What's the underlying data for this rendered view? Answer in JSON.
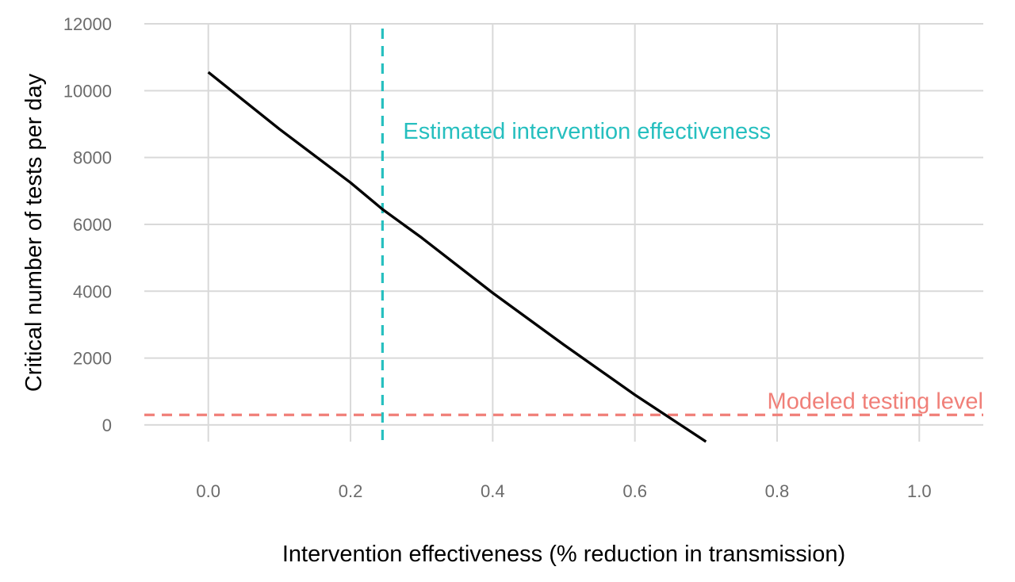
{
  "chart_data": {
    "type": "line",
    "title": "",
    "xlabel": "Intervention effectiveness (% reduction in transmission)",
    "ylabel": "Critical number of tests per day",
    "xlim": [
      -0.09,
      1.09
    ],
    "ylim": [
      -500,
      12000
    ],
    "x_ticks": [
      {
        "value": 0.0,
        "label": "0.0"
      },
      {
        "value": 0.2,
        "label": "0.2"
      },
      {
        "value": 0.4,
        "label": "0.4"
      },
      {
        "value": 0.6,
        "label": "0.6"
      },
      {
        "value": 0.8,
        "label": "0.8"
      },
      {
        "value": 1.0,
        "label": "1.0"
      }
    ],
    "y_ticks": [
      {
        "value": 0,
        "label": "0"
      },
      {
        "value": 2000,
        "label": "2000"
      },
      {
        "value": 4000,
        "label": "4000"
      },
      {
        "value": 6000,
        "label": "6000"
      },
      {
        "value": 8000,
        "label": "8000"
      },
      {
        "value": 10000,
        "label": "10000"
      },
      {
        "value": 12000,
        "label": "12000"
      }
    ],
    "grid": true,
    "series": [
      {
        "color": "#000000",
        "x": [
          0.0,
          0.1,
          0.2,
          0.245,
          0.3,
          0.4,
          0.5,
          0.6,
          0.65,
          0.7
        ],
        "y": [
          10550,
          8850,
          7250,
          6450,
          5600,
          3950,
          2400,
          900,
          200,
          -500
        ]
      }
    ],
    "reference_lines": [
      {
        "orientation": "vertical",
        "value": 0.245,
        "color": "#26bfbf",
        "style": "dashed",
        "label": "Estimated intervention effectiveness"
      },
      {
        "orientation": "horizontal",
        "value": 300,
        "color": "#f07f78",
        "style": "dashed",
        "label": "Modeled testing level"
      }
    ]
  }
}
